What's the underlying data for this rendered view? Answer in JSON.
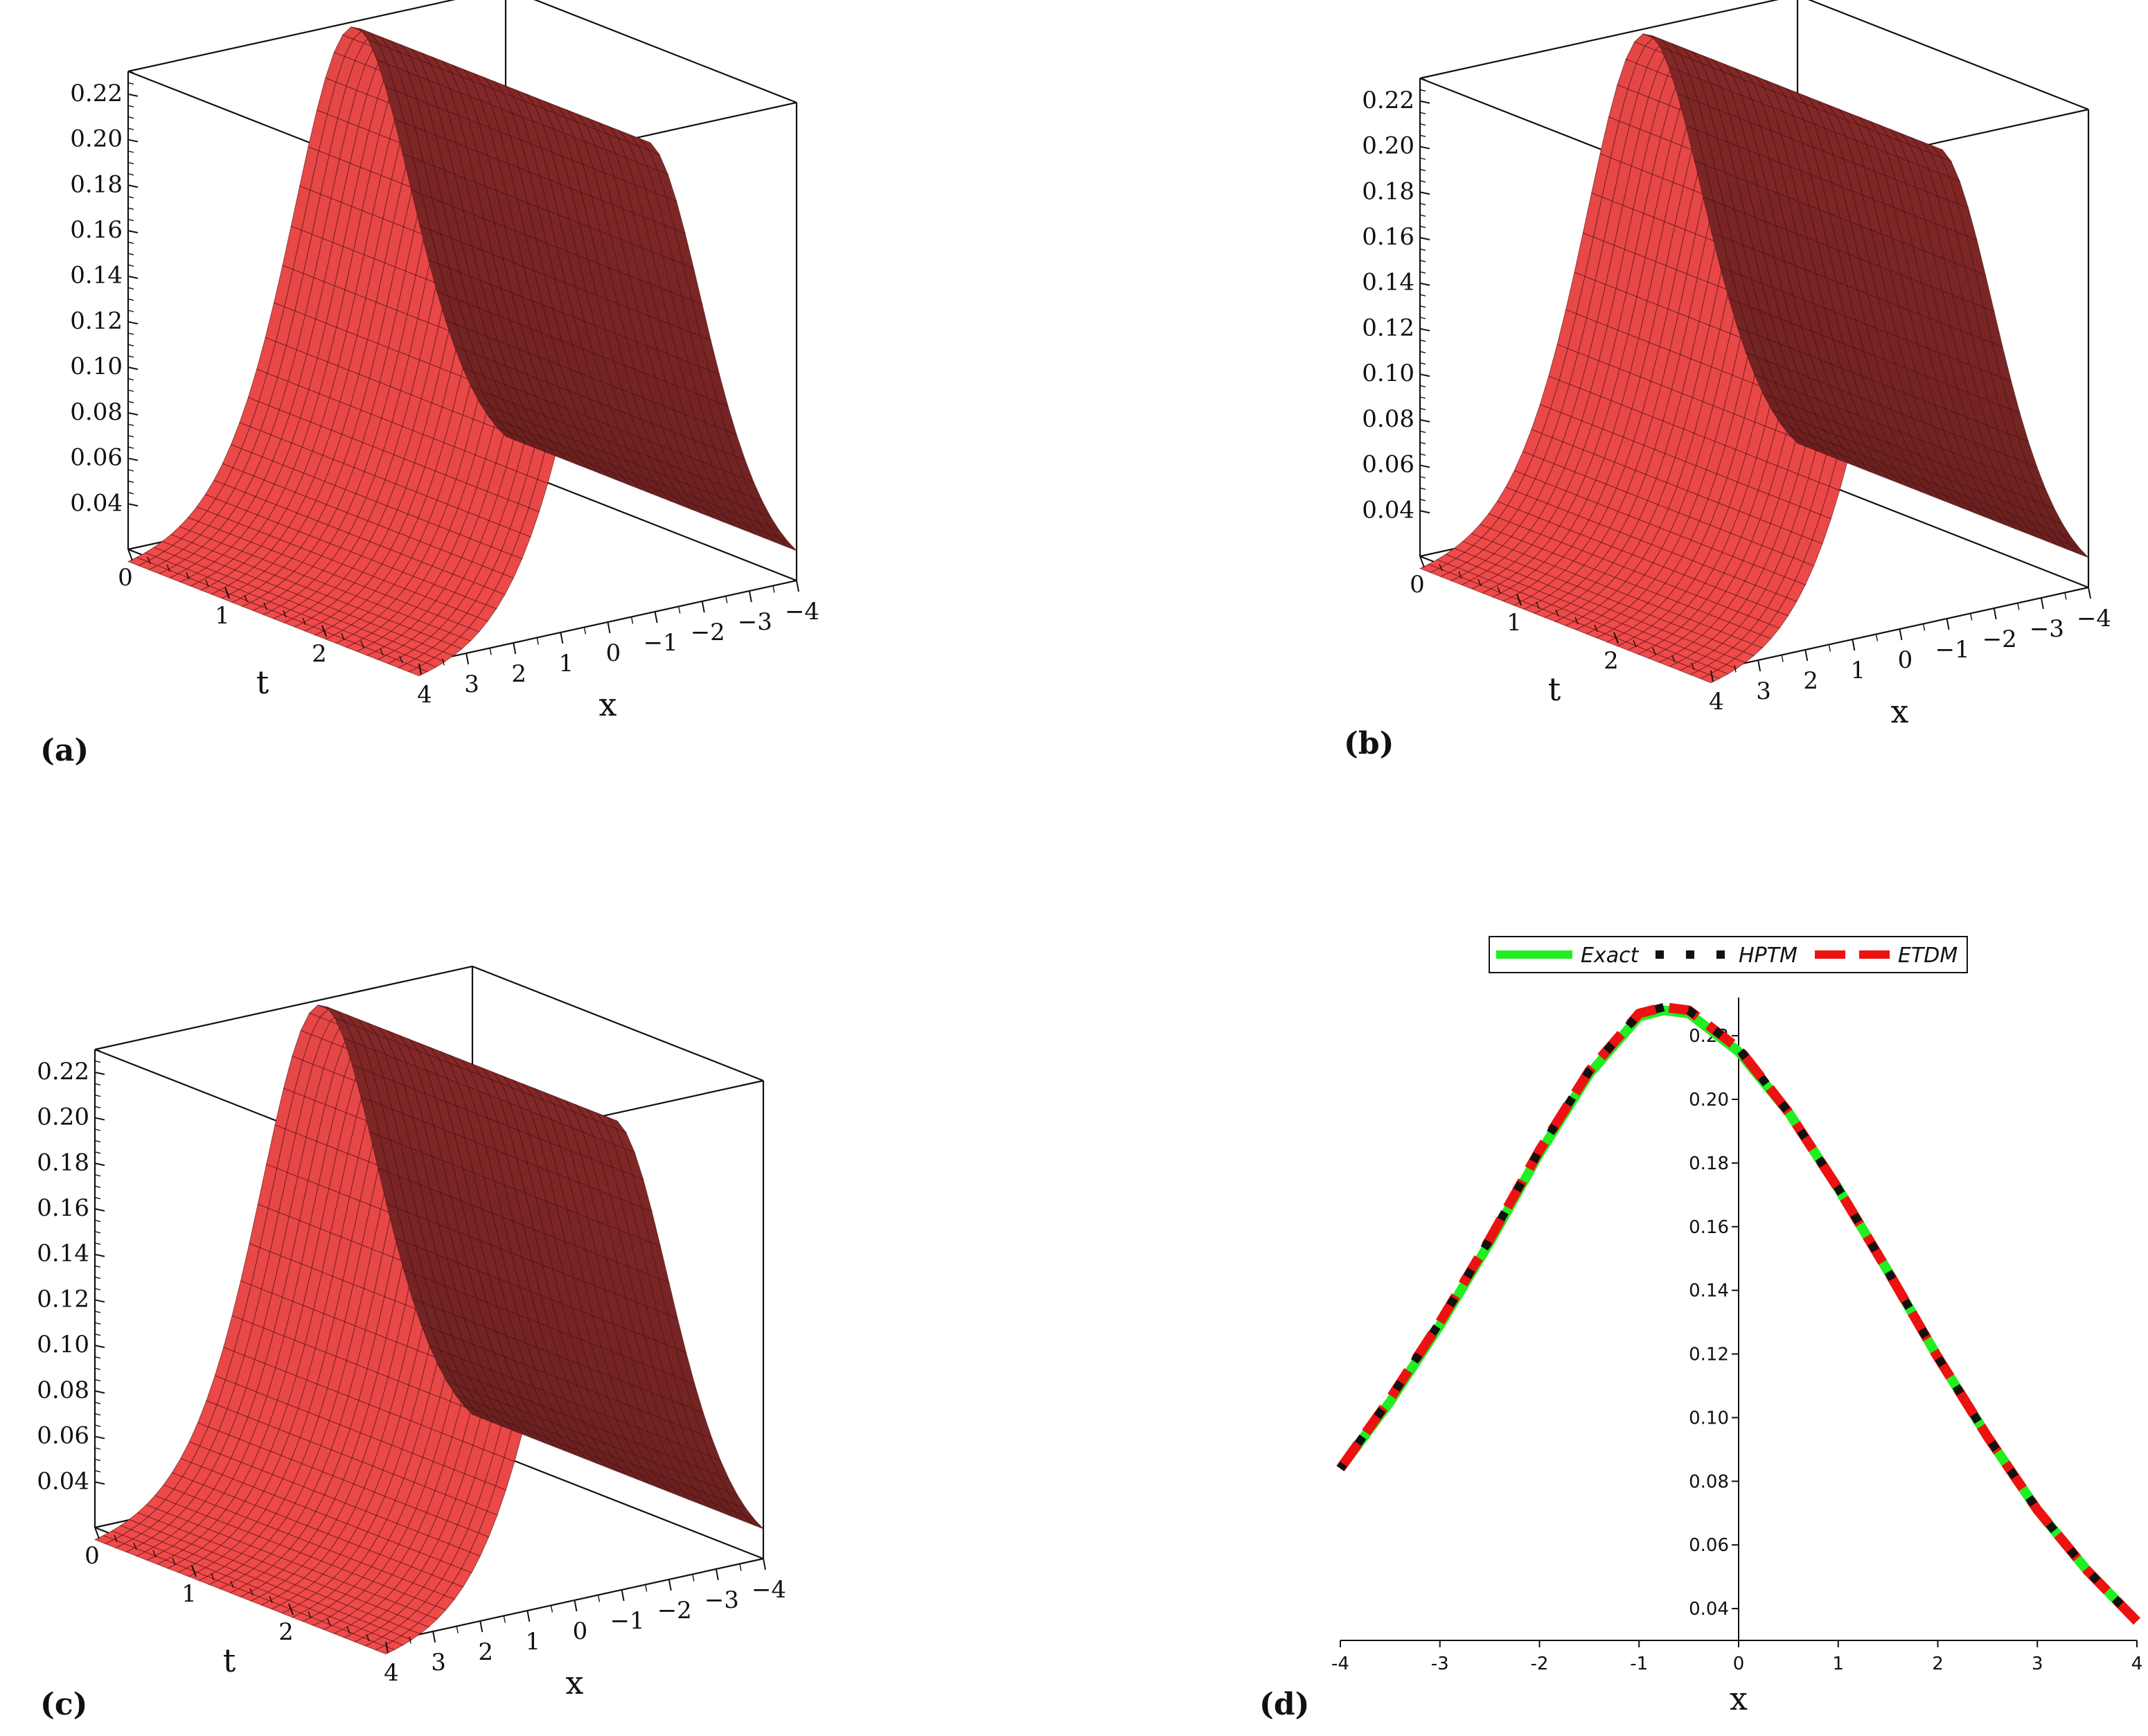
{
  "figure": {
    "panels": [
      {
        "label": "(a)"
      },
      {
        "label": "(b)"
      },
      {
        "label": "(c)"
      },
      {
        "label": "(d)"
      }
    ]
  },
  "chart_data": [
    {
      "type": "surface",
      "panel": "(a)",
      "z_ticks": [
        "0.04",
        "0.06",
        "0.08",
        "0.10",
        "0.12",
        "0.14",
        "0.16",
        "0.18",
        "0.20",
        "0.22"
      ],
      "t_ticks": [
        "0",
        "1",
        "2"
      ],
      "x_ticks": [
        "4",
        "3",
        "2",
        "1",
        "0",
        "−1",
        "−2",
        "−3",
        "−4"
      ],
      "t_label": "t",
      "x_label": "x",
      "x_range": [
        -4,
        4
      ],
      "t_range": [
        0,
        3
      ],
      "z_range": [
        0.02,
        0.23
      ],
      "surface_color": "#f04a4a"
    },
    {
      "type": "surface",
      "panel": "(b)",
      "z_ticks": [
        "0.04",
        "0.06",
        "0.08",
        "0.10",
        "0.12",
        "0.14",
        "0.16",
        "0.18",
        "0.20",
        "0.22"
      ],
      "t_ticks": [
        "0",
        "1",
        "2"
      ],
      "x_ticks": [
        "4",
        "3",
        "2",
        "1",
        "0",
        "−1",
        "−2",
        "−3",
        "−4"
      ],
      "t_label": "t",
      "x_label": "x",
      "x_range": [
        -4,
        4
      ],
      "t_range": [
        0,
        3
      ],
      "z_range": [
        0.02,
        0.23
      ],
      "surface_color": "#f04a4a"
    },
    {
      "type": "surface",
      "panel": "(c)",
      "z_ticks": [
        "0.04",
        "0.06",
        "0.08",
        "0.10",
        "0.12",
        "0.14",
        "0.16",
        "0.18",
        "0.20",
        "0.22"
      ],
      "t_ticks": [
        "0",
        "1",
        "2"
      ],
      "x_ticks": [
        "4",
        "3",
        "2",
        "1",
        "0",
        "−1",
        "−2",
        "−3",
        "−4"
      ],
      "t_label": "t",
      "x_label": "x",
      "x_range": [
        -4,
        4
      ],
      "t_range": [
        0,
        3
      ],
      "z_range": [
        0.02,
        0.23
      ],
      "surface_color": "#f04a4a"
    },
    {
      "type": "line",
      "panel": "(d)",
      "xlabel": "x",
      "xlim": [
        -4,
        4
      ],
      "ylim": [
        0.03,
        0.232
      ],
      "x_ticks": [
        -4,
        -3,
        -2,
        -1,
        0,
        1,
        2,
        3,
        4
      ],
      "x_tick_labels": [
        "-4",
        "-3",
        "-2",
        "-1",
        "0",
        "1",
        "2",
        "3",
        "4"
      ],
      "y_ticks": [
        0.04,
        0.06,
        0.08,
        0.1,
        0.12,
        0.14,
        0.16,
        0.18,
        0.2,
        0.22
      ],
      "y_tick_labels": [
        "0.04",
        "0.06",
        "0.08",
        "0.10",
        "0.12",
        "0.14",
        "0.16",
        "0.18",
        "0.20",
        "0.22"
      ],
      "legend": [
        "Exact",
        "HPTM",
        "ETDM"
      ],
      "legend_position": "top",
      "series": [
        {
          "name": "Exact",
          "color": "#22ee22",
          "style": "solid",
          "x": [
            -4,
            -3.5,
            -3,
            -2.5,
            -2,
            -1.5,
            -1,
            -0.75,
            -0.5,
            0,
            0.5,
            1,
            1.5,
            2,
            2.5,
            3,
            3.5,
            4
          ],
          "y": [
            0.084,
            0.105,
            0.129,
            0.155,
            0.183,
            0.208,
            0.226,
            0.228,
            0.227,
            0.215,
            0.196,
            0.172,
            0.146,
            0.119,
            0.094,
            0.071,
            0.052,
            0.036
          ]
        },
        {
          "name": "HPTM",
          "color": "#111111",
          "style": "dotted",
          "x": [
            -4,
            -3.5,
            -3,
            -2.5,
            -2,
            -1.5,
            -1,
            -0.75,
            -0.5,
            0,
            0.5,
            1,
            1.5,
            2,
            2.5,
            3,
            3.5,
            4
          ],
          "y": [
            0.084,
            0.106,
            0.13,
            0.156,
            0.184,
            0.209,
            0.227,
            0.229,
            0.228,
            0.216,
            0.196,
            0.172,
            0.146,
            0.119,
            0.094,
            0.071,
            0.052,
            0.036
          ]
        },
        {
          "name": "ETDM",
          "color": "#ee1111",
          "style": "dashed",
          "x": [
            -4,
            -3.5,
            -3,
            -2.5,
            -2,
            -1.5,
            -1,
            -0.75,
            -0.5,
            0,
            0.5,
            1,
            1.5,
            2,
            2.5,
            3,
            3.5,
            4
          ],
          "y": [
            0.084,
            0.106,
            0.13,
            0.156,
            0.184,
            0.209,
            0.227,
            0.229,
            0.228,
            0.216,
            0.196,
            0.172,
            0.146,
            0.119,
            0.094,
            0.071,
            0.052,
            0.036
          ]
        }
      ]
    }
  ]
}
